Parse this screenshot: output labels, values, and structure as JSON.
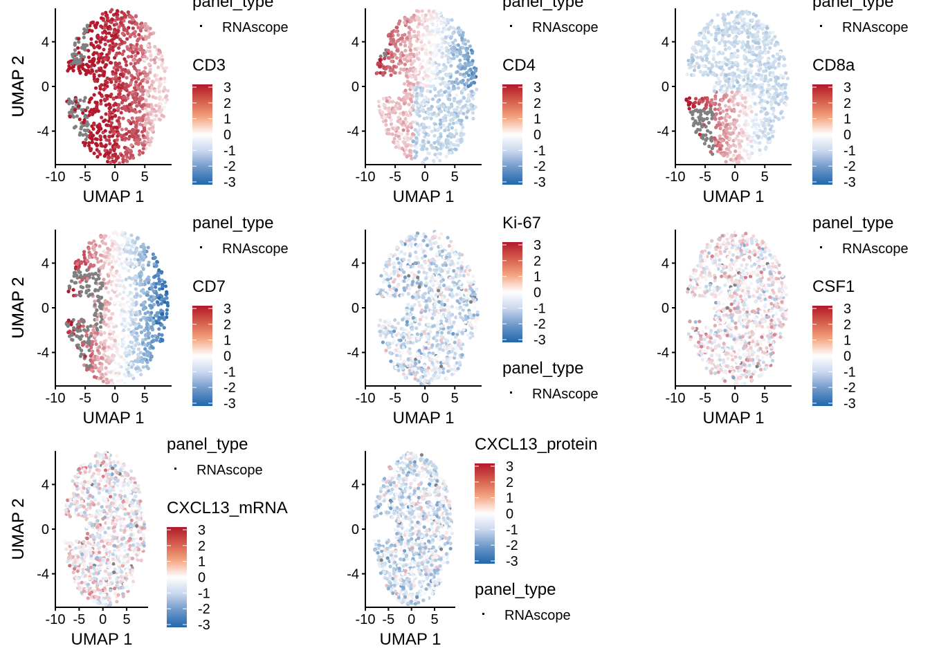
{
  "figure": {
    "layout": "3x3 grid of UMAP feature plots",
    "colors": {
      "high": "#b2182b",
      "mid": "#ffffff",
      "low": "#2166ac",
      "na": "#808080"
    }
  },
  "chart_data": [
    {
      "type": "scatter",
      "feature": "CD3",
      "xlabel": "UMAP 1",
      "ylabel": "UMAP 2",
      "xlim": [
        -10,
        9.5
      ],
      "ylim": [
        -7,
        7
      ],
      "x_ticks": [
        "-10",
        "-5",
        "0",
        "5"
      ],
      "y_ticks": [
        "4",
        "0",
        "-4"
      ],
      "legend": {
        "layout": "panel_type-first",
        "panel_type_title": "panel_type",
        "panel_type_key": "RNAscope",
        "color_title": "CD3",
        "color_ticks": [
          "3",
          "2",
          "1",
          "0",
          "-1",
          "-2",
          "-3"
        ],
        "color_range": [
          -3,
          3
        ]
      },
      "pattern": "cd3"
    },
    {
      "type": "scatter",
      "feature": "CD4",
      "xlabel": "UMAP 1",
      "ylabel": "UMAP 2",
      "xlim": [
        -10,
        9.5
      ],
      "ylim": [
        -7,
        7
      ],
      "x_ticks": [
        "-10",
        "-5",
        "0",
        "5"
      ],
      "y_ticks": [
        "4",
        "0",
        "-4"
      ],
      "legend": {
        "layout": "panel_type-first",
        "panel_type_title": "panel_type",
        "panel_type_key": "RNAscope",
        "color_title": "CD4",
        "color_ticks": [
          "3",
          "2",
          "1",
          "0",
          "-1",
          "-2",
          "-3"
        ],
        "color_range": [
          -3,
          3
        ]
      },
      "pattern": "cd4"
    },
    {
      "type": "scatter",
      "feature": "CD8a",
      "xlabel": "UMAP 1",
      "ylabel": "UMAP 2",
      "xlim": [
        -10,
        9.5
      ],
      "ylim": [
        -7,
        7
      ],
      "x_ticks": [
        "-10",
        "-5",
        "0",
        "5"
      ],
      "y_ticks": [
        "4",
        "0",
        "-4"
      ],
      "legend": {
        "layout": "panel_type-first",
        "panel_type_title": "panel_type",
        "panel_type_key": "RNAscope",
        "color_title": "CD8a",
        "color_ticks": [
          "3",
          "2",
          "1",
          "0",
          "-1",
          "-2",
          "-3"
        ],
        "color_range": [
          -3,
          3
        ]
      },
      "pattern": "cd8a"
    },
    {
      "type": "scatter",
      "feature": "CD7",
      "xlabel": "UMAP 1",
      "ylabel": "UMAP 2",
      "xlim": [
        -10,
        9.5
      ],
      "ylim": [
        -7,
        7
      ],
      "x_ticks": [
        "-10",
        "-5",
        "0",
        "5"
      ],
      "y_ticks": [
        "4",
        "0",
        "-4"
      ],
      "legend": {
        "layout": "panel_type-first",
        "panel_type_title": "panel_type",
        "panel_type_key": "RNAscope",
        "color_title": "CD7",
        "color_ticks": [
          "3",
          "2",
          "1",
          "0",
          "-1",
          "-2",
          "-3"
        ],
        "color_range": [
          -3,
          3
        ]
      },
      "pattern": "cd7"
    },
    {
      "type": "scatter",
      "feature": "Ki-67",
      "xlabel": "UMAP 1",
      "ylabel": "UMAP 2",
      "xlim": [
        -10,
        9.5
      ],
      "ylim": [
        -7,
        7
      ],
      "x_ticks": [
        "-10",
        "-5",
        "0",
        "5"
      ],
      "y_ticks": [
        "4",
        "0",
        "-4"
      ],
      "legend": {
        "layout": "color-first",
        "panel_type_title": "panel_type",
        "panel_type_key": "RNAscope",
        "color_title": "Ki-67",
        "color_ticks": [
          "3",
          "2",
          "1",
          "0",
          "-1",
          "-2",
          "-3"
        ],
        "color_range": [
          -3,
          3
        ]
      },
      "pattern": "noise_low"
    },
    {
      "type": "scatter",
      "feature": "CSF1",
      "xlabel": "UMAP 1",
      "ylabel": "UMAP 2",
      "xlim": [
        -10,
        9.5
      ],
      "ylim": [
        -7,
        7
      ],
      "x_ticks": [
        "-10",
        "-5",
        "0",
        "5"
      ],
      "y_ticks": [
        "4",
        "0",
        "-4"
      ],
      "legend": {
        "layout": "panel_type-first",
        "panel_type_title": "panel_type",
        "panel_type_key": "RNAscope",
        "color_title": "CSF1",
        "color_ticks": [
          "3",
          "2",
          "1",
          "0",
          "-1",
          "-2",
          "-3"
        ],
        "color_range": [
          -3,
          3
        ]
      },
      "pattern": "noise_mixed"
    },
    {
      "type": "scatter",
      "feature": "CXCL13_mRNA",
      "xlabel": "UMAP 1",
      "ylabel": "UMAP 2",
      "xlim": [
        -10,
        9.5
      ],
      "ylim": [
        -7,
        7
      ],
      "x_ticks": [
        "-10",
        "-5",
        "0",
        "5"
      ],
      "y_ticks": [
        "4",
        "0",
        "-4"
      ],
      "legend": {
        "layout": "panel_type-first",
        "panel_type_title": "panel_type",
        "panel_type_key": "RNAscope",
        "color_title": "CXCL13_mRNA",
        "color_ticks": [
          "3",
          "2",
          "1",
          "0",
          "-1",
          "-2",
          "-3"
        ],
        "color_range": [
          -3,
          3
        ]
      },
      "pattern": "noise_mixed"
    },
    {
      "type": "scatter",
      "feature": "CXCL13_protein",
      "xlabel": "UMAP 1",
      "ylabel": "UMAP 2",
      "xlim": [
        -10,
        9.5
      ],
      "ylim": [
        -7,
        7
      ],
      "x_ticks": [
        "-10",
        "-5",
        "0",
        "5"
      ],
      "y_ticks": [
        "4",
        "0",
        "-4"
      ],
      "legend": {
        "layout": "color-first",
        "panel_type_title": "panel_type",
        "panel_type_key": "RNAscope",
        "color_title": "CXCL13_protein",
        "color_ticks": [
          "3",
          "2",
          "1",
          "0",
          "-1",
          "-2",
          "-3"
        ],
        "color_range": [
          -3,
          3
        ]
      },
      "pattern": "noise_low"
    }
  ]
}
